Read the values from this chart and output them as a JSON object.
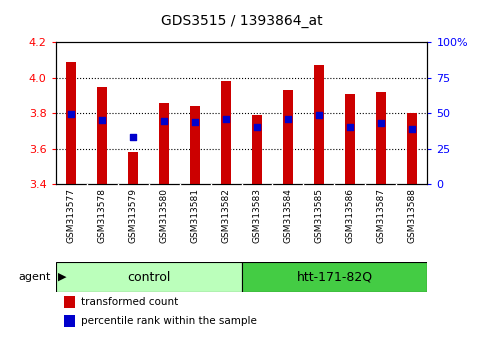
{
  "title": "GDS3515 / 1393864_at",
  "samples": [
    "GSM313577",
    "GSM313578",
    "GSM313579",
    "GSM313580",
    "GSM313581",
    "GSM313582",
    "GSM313583",
    "GSM313584",
    "GSM313585",
    "GSM313586",
    "GSM313587",
    "GSM313588"
  ],
  "transformed_count": [
    4.09,
    3.95,
    3.58,
    3.86,
    3.84,
    3.98,
    3.79,
    3.93,
    4.07,
    3.91,
    3.92,
    3.8
  ],
  "percentile_rank": [
    3.795,
    3.76,
    3.665,
    3.755,
    3.748,
    3.77,
    3.725,
    3.77,
    3.79,
    3.72,
    3.745,
    3.71
  ],
  "ylim_left": [
    3.4,
    4.2
  ],
  "ylim_right": [
    0,
    100
  ],
  "yticks_left": [
    3.4,
    3.6,
    3.8,
    4.0,
    4.2
  ],
  "yticks_right": [
    0,
    25,
    50,
    75,
    100
  ],
  "ytick_labels_right": [
    "0",
    "25",
    "50",
    "75",
    "100%"
  ],
  "bar_color": "#cc0000",
  "dot_color": "#0000cc",
  "bar_bottom": 3.4,
  "groups": [
    {
      "label": "control",
      "start": 0,
      "end": 6,
      "color": "#bbffbb"
    },
    {
      "label": "htt-171-82Q",
      "start": 6,
      "end": 12,
      "color": "#44cc44"
    }
  ],
  "legend_items": [
    {
      "label": "transformed count",
      "color": "#cc0000"
    },
    {
      "label": "percentile rank within the sample",
      "color": "#0000cc"
    }
  ],
  "plot_bg": "#ffffff",
  "tick_label_bg": "#cccccc",
  "bar_width": 0.35,
  "gridlines_at": [
    3.6,
    3.8,
    4.0
  ]
}
